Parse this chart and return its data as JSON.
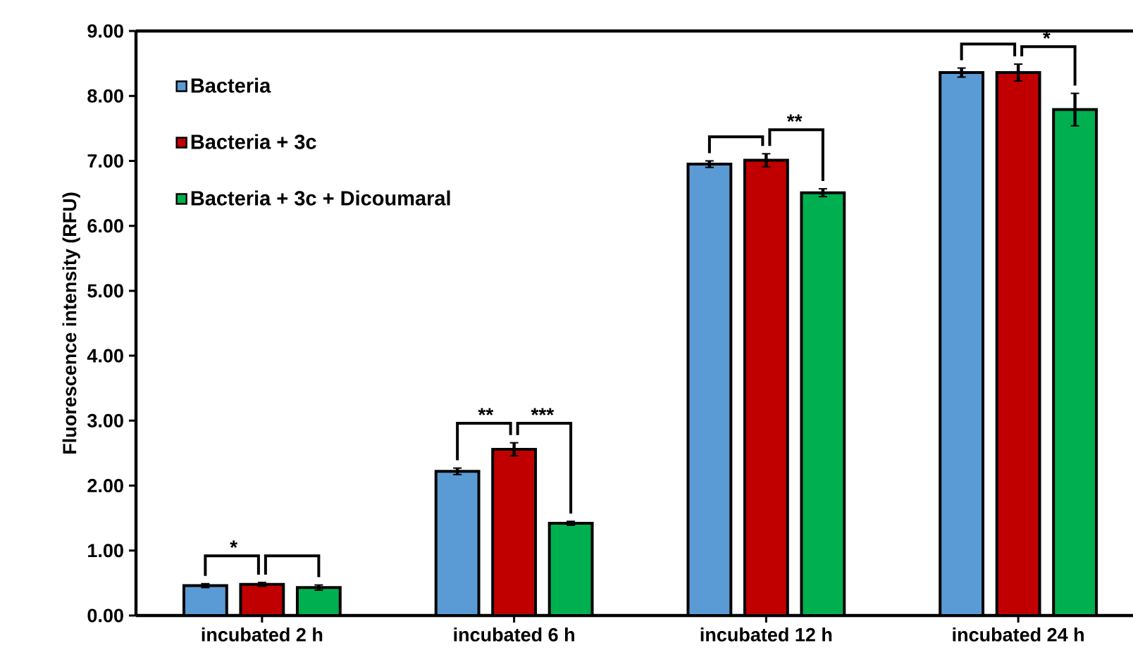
{
  "chart_data": {
    "type": "bar",
    "ylabel": "Fluorescence intensity (RFU)",
    "categories": [
      "incubated 2 h",
      "incubated 6 h",
      "incubated 12 h",
      "incubated 24 h"
    ],
    "series": [
      {
        "name": "Bacteria",
        "color": "#5b9bd5",
        "values": [
          0.46,
          2.22,
          6.95,
          8.36
        ],
        "errors": [
          0.03,
          0.05,
          0.05,
          0.07
        ]
      },
      {
        "name": "Bacteria + 3c",
        "color": "#c00000",
        "values": [
          0.48,
          2.56,
          7.01,
          8.36
        ],
        "errors": [
          0.03,
          0.1,
          0.1,
          0.13
        ]
      },
      {
        "name": "Bacteria + 3c  + Dicoumaral",
        "color": "#00b050",
        "values": [
          0.43,
          1.42,
          6.51,
          7.79
        ],
        "errors": [
          0.04,
          0.03,
          0.06,
          0.25
        ]
      }
    ],
    "ylim": [
      0,
      9
    ],
    "yticks": [
      {
        "value": 0,
        "label": "0.00"
      },
      {
        "value": 1,
        "label": "1.00"
      },
      {
        "value": 2,
        "label": "2.00"
      },
      {
        "value": 3,
        "label": "3.00"
      },
      {
        "value": 4,
        "label": "4.00"
      },
      {
        "value": 5,
        "label": "5.00"
      },
      {
        "value": 6,
        "label": "6.00"
      },
      {
        "value": 7,
        "label": "7.00"
      },
      {
        "value": 8,
        "label": "8.00"
      },
      {
        "value": 9,
        "label": "9.00"
      }
    ],
    "annotations": [
      "*",
      "**",
      "***",
      "**",
      "*"
    ],
    "legend": "top left",
    "grid": false
  }
}
